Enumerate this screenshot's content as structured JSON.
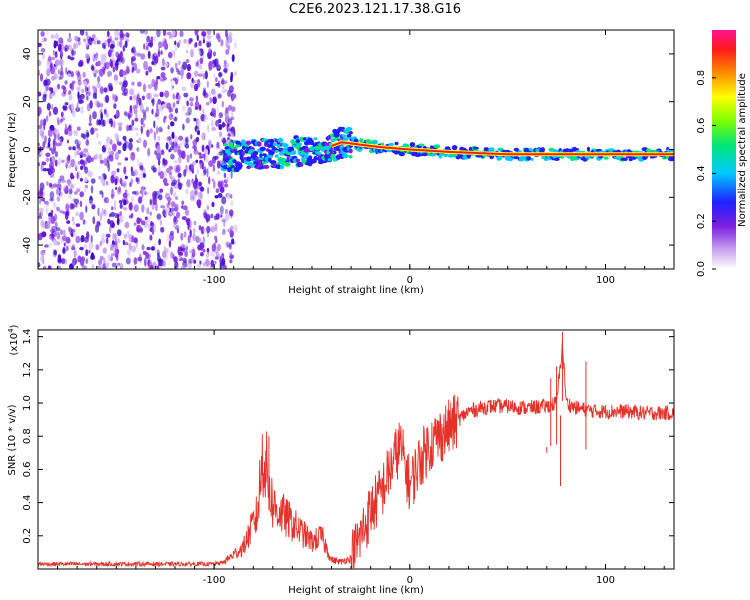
{
  "title": "C2E6.2023.121.17.38.G16",
  "chart_data": [
    {
      "type": "heatmap",
      "xlabel": "Height of straight line (km)",
      "ylabel": "Frequency (Hz)",
      "xlim": [
        -190,
        135
      ],
      "ylim": [
        -50,
        50
      ],
      "x_ticks": [
        -100,
        0,
        100
      ],
      "y_ticks": [
        -40,
        -20,
        0,
        20,
        40
      ],
      "colorbar": {
        "label": "Normalized spectral amplitude",
        "range": [
          0,
          1
        ],
        "ticks": [
          "0.0",
          "0.2",
          "0.4",
          "0.6",
          "0.8"
        ],
        "colors": [
          "#ffffff",
          "#c9a3f0",
          "#7a1fe0",
          "#2020ff",
          "#00c8ff",
          "#00e676",
          "#7fff00",
          "#ffff00",
          "#ff8c00",
          "#ff1a1a",
          "#ff1493"
        ]
      },
      "ridge": {
        "x": [
          -95,
          -80,
          -60,
          -45,
          -35,
          -25,
          -15,
          0,
          20,
          50,
          80,
          100,
          135
        ],
        "freq_hz": [
          -3,
          -2,
          -1,
          0,
          3,
          2,
          1,
          0,
          -1,
          -2,
          -2,
          -2,
          -2
        ]
      },
      "noise_region_x": [
        -190,
        -95
      ]
    },
    {
      "type": "line",
      "xlabel": "Height of straight line (km)",
      "ylabel": "SNR (10 * v/v)",
      "y_multiplier": "(x10",
      "y_multiplier_exp": "4",
      "xlim": [
        -190,
        135
      ],
      "ylim": [
        0,
        14400
      ],
      "x_ticks": [
        -100,
        0,
        100
      ],
      "y_ticks": [
        {
          "value": 2000,
          "label": "0.2"
        },
        {
          "value": 4000,
          "label": "0.4"
        },
        {
          "value": 6000,
          "label": "0.6"
        },
        {
          "value": 8000,
          "label": "0.8"
        },
        {
          "value": 10000,
          "label": "1.0"
        },
        {
          "value": 12000,
          "label": "1.2"
        },
        {
          "value": 14000,
          "label": "1.4"
        }
      ],
      "series": [
        {
          "color": "#e8302a",
          "x": [
            -190,
            -100,
            -95,
            -85,
            -78,
            -75,
            -70,
            -60,
            -50,
            -45,
            -40,
            -35,
            -30,
            -25,
            -20,
            -15,
            -10,
            -5,
            0,
            5,
            10,
            15,
            20,
            25,
            30,
            40,
            50,
            60,
            70,
            75,
            78,
            80,
            85,
            90,
            95,
            100,
            110,
            120,
            135
          ],
          "y": [
            300,
            300,
            400,
            1200,
            3000,
            6500,
            3500,
            2500,
            1500,
            1800,
            500,
            400,
            600,
            2000,
            3500,
            4500,
            6000,
            7500,
            5000,
            6500,
            7500,
            8000,
            8500,
            9000,
            9500,
            9800,
            9800,
            9700,
            9800,
            10000,
            13500,
            10000,
            9700,
            9600,
            9500,
            9500,
            9500,
            9400,
            9400
          ]
        }
      ]
    }
  ]
}
